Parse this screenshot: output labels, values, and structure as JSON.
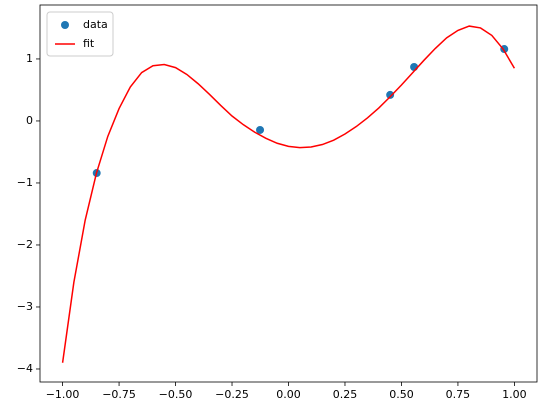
{
  "chart_data": {
    "type": "scatter",
    "series": [
      {
        "name": "data",
        "type": "scatter",
        "color": "#1f77b4",
        "x": [
          -0.849,
          -0.126,
          0.45,
          0.556,
          0.955
        ],
        "values": [
          -0.84,
          -0.145,
          0.42,
          0.87,
          1.16
        ]
      },
      {
        "name": "fit",
        "type": "line",
        "color": "#ff0000",
        "x": [
          -1.0,
          -0.95,
          -0.9,
          -0.85,
          -0.8,
          -0.75,
          -0.7,
          -0.65,
          -0.6,
          -0.55,
          -0.5,
          -0.45,
          -0.4,
          -0.35,
          -0.3,
          -0.25,
          -0.2,
          -0.15,
          -0.1,
          -0.05,
          0.0,
          0.05,
          0.1,
          0.15,
          0.2,
          0.25,
          0.3,
          0.35,
          0.4,
          0.45,
          0.5,
          0.55,
          0.6,
          0.65,
          0.7,
          0.75,
          0.8,
          0.85,
          0.9,
          0.95,
          1.0
        ],
        "values": [
          -3.9,
          -2.6,
          -1.6,
          -0.84,
          -0.25,
          0.2,
          0.55,
          0.78,
          0.89,
          0.91,
          0.86,
          0.75,
          0.6,
          0.43,
          0.25,
          0.08,
          -0.06,
          -0.18,
          -0.28,
          -0.36,
          -0.41,
          -0.43,
          -0.42,
          -0.38,
          -0.31,
          -0.21,
          -0.09,
          0.05,
          0.21,
          0.39,
          0.58,
          0.78,
          0.98,
          1.17,
          1.34,
          1.46,
          1.53,
          1.5,
          1.38,
          1.16,
          0.85
        ]
      }
    ],
    "xlim": [
      -1.1,
      1.1
    ],
    "ylim": [
      -4.21,
      1.87
    ],
    "xticks": [
      {
        "value": -1.0,
        "label": "−1.00"
      },
      {
        "value": -0.75,
        "label": "−0.75"
      },
      {
        "value": -0.5,
        "label": "−0.50"
      },
      {
        "value": -0.25,
        "label": "−0.25"
      },
      {
        "value": 0,
        "label": "0.00"
      },
      {
        "value": 0.25,
        "label": "0.25"
      },
      {
        "value": 0.5,
        "label": "0.50"
      },
      {
        "value": 0.75,
        "label": "0.75"
      },
      {
        "value": 1.0,
        "label": "1.00"
      }
    ],
    "yticks": [
      {
        "value": -4,
        "label": "−4"
      },
      {
        "value": -3,
        "label": "−3"
      },
      {
        "value": -2,
        "label": "−2"
      },
      {
        "value": -1,
        "label": "−1"
      },
      0,
      1
    ],
    "legend": "upper left"
  }
}
